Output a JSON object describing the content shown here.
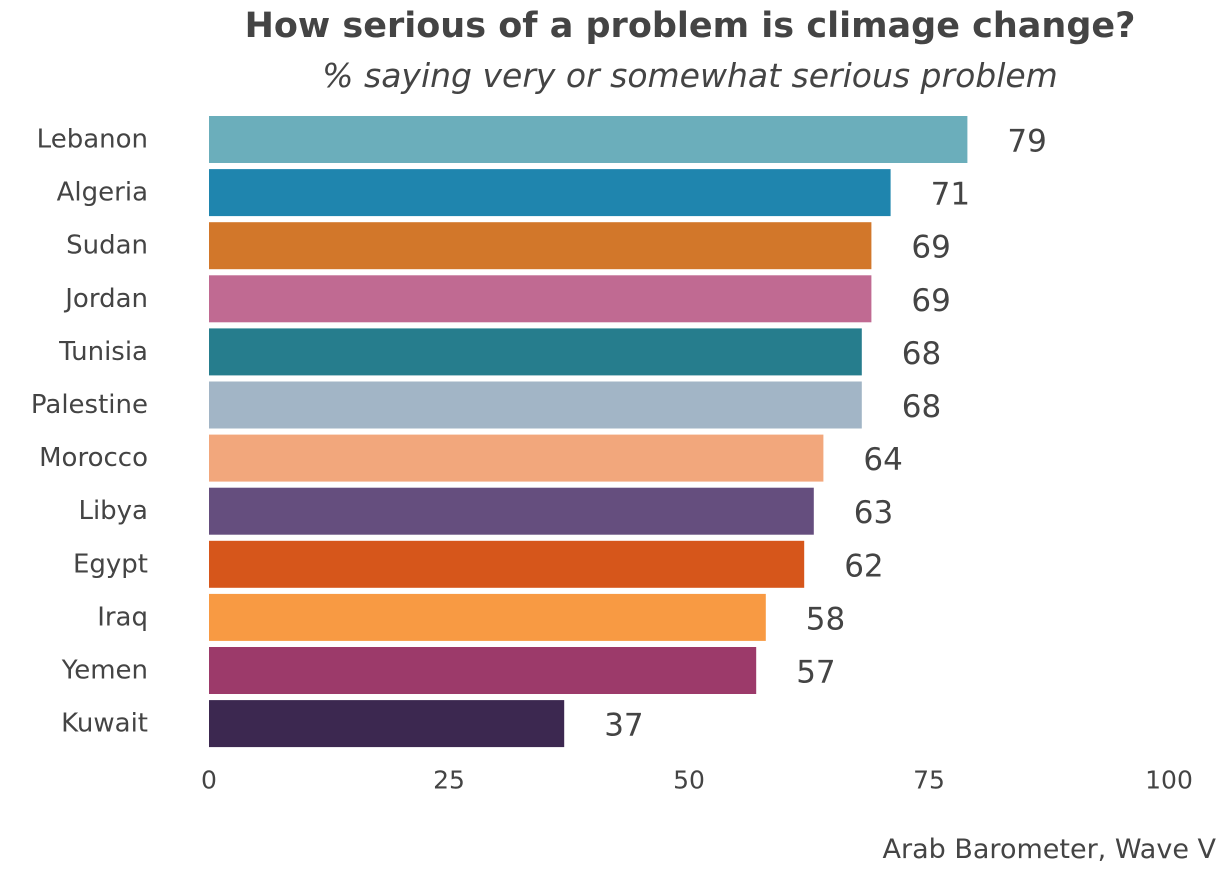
{
  "colors": {
    "text": "#444444",
    "background": "#ffffff"
  },
  "chart_data": {
    "type": "bar",
    "orientation": "horizontal",
    "title": "How serious of a problem is climage change?",
    "subtitle": "% saying very or somewhat serious problem",
    "source": "Arab Barometer, Wave V",
    "categories": [
      "Lebanon",
      "Algeria",
      "Sudan",
      "Jordan",
      "Tunisia",
      "Palestine",
      "Morocco",
      "Libya",
      "Egypt",
      "Iraq",
      "Yemen",
      "Kuwait"
    ],
    "values": [
      79,
      71,
      69,
      69,
      68,
      68,
      64,
      63,
      62,
      58,
      57,
      37
    ],
    "bar_colors": [
      "#6BAEBB",
      "#1F85AE",
      "#D2772A",
      "#C06A92",
      "#267D8D",
      "#A2B5C6",
      "#F2A77C",
      "#654E7E",
      "#D6561B",
      "#F89A43",
      "#9C3A6A",
      "#3C2850"
    ],
    "xlim": [
      0,
      100
    ],
    "xticks": [
      0,
      25,
      50,
      75,
      100
    ],
    "xlabel": "",
    "ylabel": "",
    "grid": false,
    "legend": "none"
  }
}
